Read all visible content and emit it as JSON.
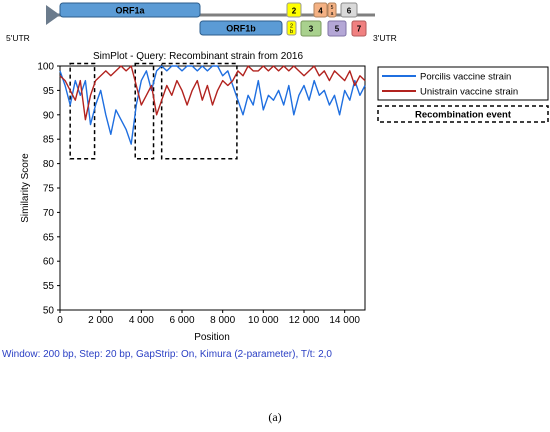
{
  "genome": {
    "utr5": "5'UTR",
    "utr3": "3'UTR",
    "orfs": [
      {
        "label": "ORF1a",
        "color": "#5b9bd5"
      },
      {
        "label": "ORF1b",
        "color": "#5b9bd5"
      },
      {
        "label": "2a",
        "color": "#ffff00"
      },
      {
        "label": "2b",
        "color": "#ffff00"
      },
      {
        "label": "3",
        "color": "#a9d18e"
      },
      {
        "label": "4",
        "color": "#f4b183"
      },
      {
        "label": "5a",
        "color": "#f4b183"
      },
      {
        "label": "5",
        "color": "#b4a7d6"
      },
      {
        "label": "6",
        "color": "#d9d9d9"
      },
      {
        "label": "7",
        "color": "#f08080"
      }
    ]
  },
  "chart_data": {
    "type": "line",
    "title": "SimPlot - Query: Recombinant strain from 2016",
    "xlabel": "Position",
    "ylabel": "Similarity Score",
    "xlim": [
      0,
      15000
    ],
    "ylim": [
      50,
      100
    ],
    "x_ticks": [
      "0",
      "2 000",
      "4 000",
      "6 000",
      "8 000",
      "10 000",
      "12 000",
      "14 000"
    ],
    "y_ticks": [
      "50",
      "55",
      "60",
      "65",
      "70",
      "75",
      "80",
      "85",
      "90",
      "95",
      "100"
    ],
    "legend_position": "right",
    "x": [
      0,
      250,
      500,
      750,
      1000,
      1250,
      1500,
      1750,
      2000,
      2250,
      2500,
      2750,
      3000,
      3250,
      3500,
      3750,
      4000,
      4250,
      4500,
      4750,
      5000,
      5250,
      5500,
      5750,
      6000,
      6250,
      6500,
      6750,
      7000,
      7250,
      7500,
      7750,
      8000,
      8250,
      8500,
      8750,
      9000,
      9250,
      9500,
      9750,
      10000,
      10250,
      10500,
      10750,
      11000,
      11250,
      11500,
      11750,
      12000,
      12250,
      12500,
      12750,
      13000,
      13250,
      13500,
      13750,
      14000,
      14250,
      14500,
      14750,
      15000
    ],
    "series": [
      {
        "name": "Porcilis vaccine strain",
        "color": "#1f6fe0",
        "values": [
          99,
          96,
          92,
          97,
          94,
          97,
          88,
          92,
          95,
          90,
          86,
          91,
          89,
          87,
          84,
          92,
          97,
          99,
          95,
          99,
          100,
          99,
          100,
          100,
          99,
          100,
          100,
          99,
          100,
          99,
          100,
          100,
          98,
          99,
          96,
          93,
          90,
          94,
          92,
          97,
          91,
          94,
          93,
          95,
          92,
          96,
          90,
          94,
          96,
          93,
          97,
          94,
          95,
          92,
          94,
          90,
          95,
          93,
          97,
          94,
          96
        ]
      },
      {
        "name": "Unistrain vaccine strain",
        "color": "#b2231f",
        "values": [
          98,
          97,
          95,
          93,
          97,
          89,
          94,
          97,
          98,
          99,
          98,
          99,
          100,
          99,
          100,
          96,
          92,
          94,
          96,
          90,
          93,
          96,
          94,
          97,
          95,
          92,
          95,
          97,
          93,
          96,
          92,
          95,
          97,
          96,
          97,
          99,
          98,
          100,
          99,
          99,
          100,
          99,
          100,
          99,
          100,
          99,
          100,
          99,
          98,
          99,
          100,
          98,
          99,
          97,
          99,
          98,
          97,
          99,
          96,
          98,
          97
        ]
      }
    ],
    "recombination_events": [
      {
        "x_start": 500,
        "x_end": 1700,
        "y_min": 81,
        "y_max": 100.5
      },
      {
        "x_start": 3700,
        "x_end": 4600,
        "y_min": 81,
        "y_max": 100.5
      },
      {
        "x_start": 5000,
        "x_end": 8700,
        "y_min": 81,
        "y_max": 100.5
      }
    ],
    "legend": {
      "event_label": "Recombination event"
    }
  },
  "caption": "Window: 200 bp, Step: 20 bp, GapStrip: On, Kimura (2-parameter), T/t: 2,0",
  "panel_label": "(a)"
}
